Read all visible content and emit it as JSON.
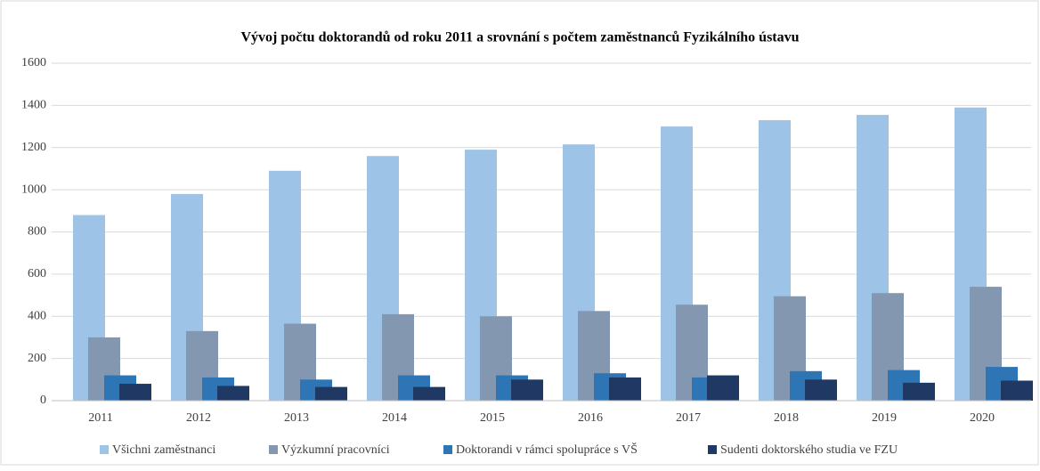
{
  "chart_data": {
    "type": "bar",
    "title": "Vývoj počtu doktorandů od roku 2011 a srovnání s počtem zaměstnanců Fyzikálního ústavu",
    "categories": [
      "2011",
      "2012",
      "2013",
      "2014",
      "2015",
      "2016",
      "2017",
      "2018",
      "2019",
      "2020"
    ],
    "series": [
      {
        "name": "Všichni zaměstnanci",
        "color": "#9dc3e6",
        "values": [
          880,
          980,
          1090,
          1160,
          1190,
          1215,
          1300,
          1330,
          1355,
          1390
        ]
      },
      {
        "name": "Výzkumní pracovníci",
        "color": "#8497b0",
        "values": [
          300,
          330,
          365,
          410,
          400,
          425,
          455,
          495,
          510,
          540
        ]
      },
      {
        "name": "Doktorandi v rámci spolupráce s VŠ",
        "color": "#2e75b6",
        "values": [
          120,
          110,
          100,
          120,
          120,
          130,
          110,
          140,
          145,
          160
        ]
      },
      {
        "name": "Sudenti doktorského studia ve FZU",
        "color": "#203864",
        "values": [
          80,
          70,
          65,
          65,
          100,
          110,
          120,
          100,
          85,
          95
        ]
      }
    ],
    "ylim": [
      0,
      1600
    ],
    "yticks": [
      0,
      200,
      400,
      600,
      800,
      1000,
      1200,
      1400,
      1600
    ],
    "grid": true,
    "legend": "bottom"
  }
}
